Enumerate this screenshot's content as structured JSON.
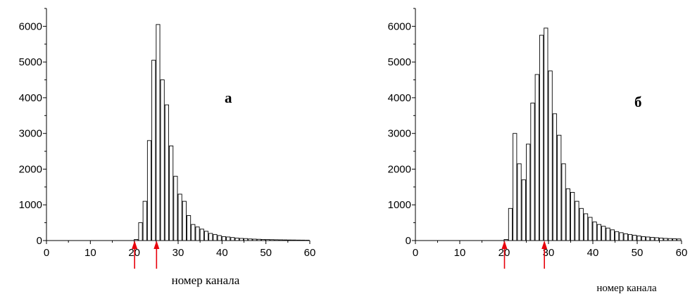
{
  "chart_data": [
    {
      "type": "bar",
      "panel_label": "а",
      "xlabel": "номер канала",
      "ylabel": "",
      "xlim": [
        0,
        60
      ],
      "ylim": [
        0,
        6500
      ],
      "xticks": [
        0,
        10,
        20,
        30,
        40,
        50,
        60
      ],
      "yticks": [
        0,
        1000,
        2000,
        3000,
        4000,
        5000,
        6000
      ],
      "x": [
        20,
        21,
        22,
        23,
        24,
        25,
        26,
        27,
        28,
        29,
        30,
        31,
        32,
        33,
        34,
        35,
        36,
        37,
        38,
        39,
        40,
        41,
        42,
        43,
        44,
        45,
        46,
        47,
        48,
        49,
        50,
        51,
        52,
        53,
        54,
        55,
        56,
        57,
        58,
        59
      ],
      "values": [
        30,
        500,
        1100,
        2800,
        5050,
        6050,
        4500,
        3800,
        2650,
        1800,
        1300,
        1100,
        700,
        450,
        380,
        320,
        260,
        200,
        170,
        140,
        110,
        100,
        85,
        70,
        60,
        55,
        45,
        40,
        35,
        30,
        28,
        25,
        22,
        20,
        18,
        16,
        15,
        13,
        12,
        10
      ],
      "arrows_at_channel": [
        20,
        25
      ]
    },
    {
      "type": "bar",
      "panel_label": "б",
      "xlabel": "номер канала",
      "ylabel": "",
      "xlim": [
        0,
        60
      ],
      "ylim": [
        0,
        6500
      ],
      "xticks": [
        0,
        10,
        20,
        30,
        40,
        50,
        60
      ],
      "yticks": [
        0,
        1000,
        2000,
        3000,
        4000,
        5000,
        6000
      ],
      "x": [
        20,
        21,
        22,
        23,
        24,
        25,
        26,
        27,
        28,
        29,
        30,
        31,
        32,
        33,
        34,
        35,
        36,
        37,
        38,
        39,
        40,
        41,
        42,
        43,
        44,
        45,
        46,
        47,
        48,
        49,
        50,
        51,
        52,
        53,
        54,
        55,
        56,
        57,
        58,
        59
      ],
      "values": [
        30,
        900,
        3000,
        2150,
        1700,
        2700,
        3850,
        4650,
        5750,
        5950,
        4750,
        3550,
        2950,
        2150,
        1450,
        1350,
        1100,
        900,
        750,
        650,
        520,
        450,
        400,
        350,
        300,
        250,
        220,
        190,
        170,
        150,
        130,
        110,
        100,
        90,
        80,
        70,
        60,
        55,
        50,
        45
      ],
      "arrows_at_channel": [
        20,
        29
      ]
    }
  ],
  "colors": {
    "bar_fill": "#ffffff",
    "bar_stroke": "#000000",
    "arrow": "#e8000b"
  }
}
